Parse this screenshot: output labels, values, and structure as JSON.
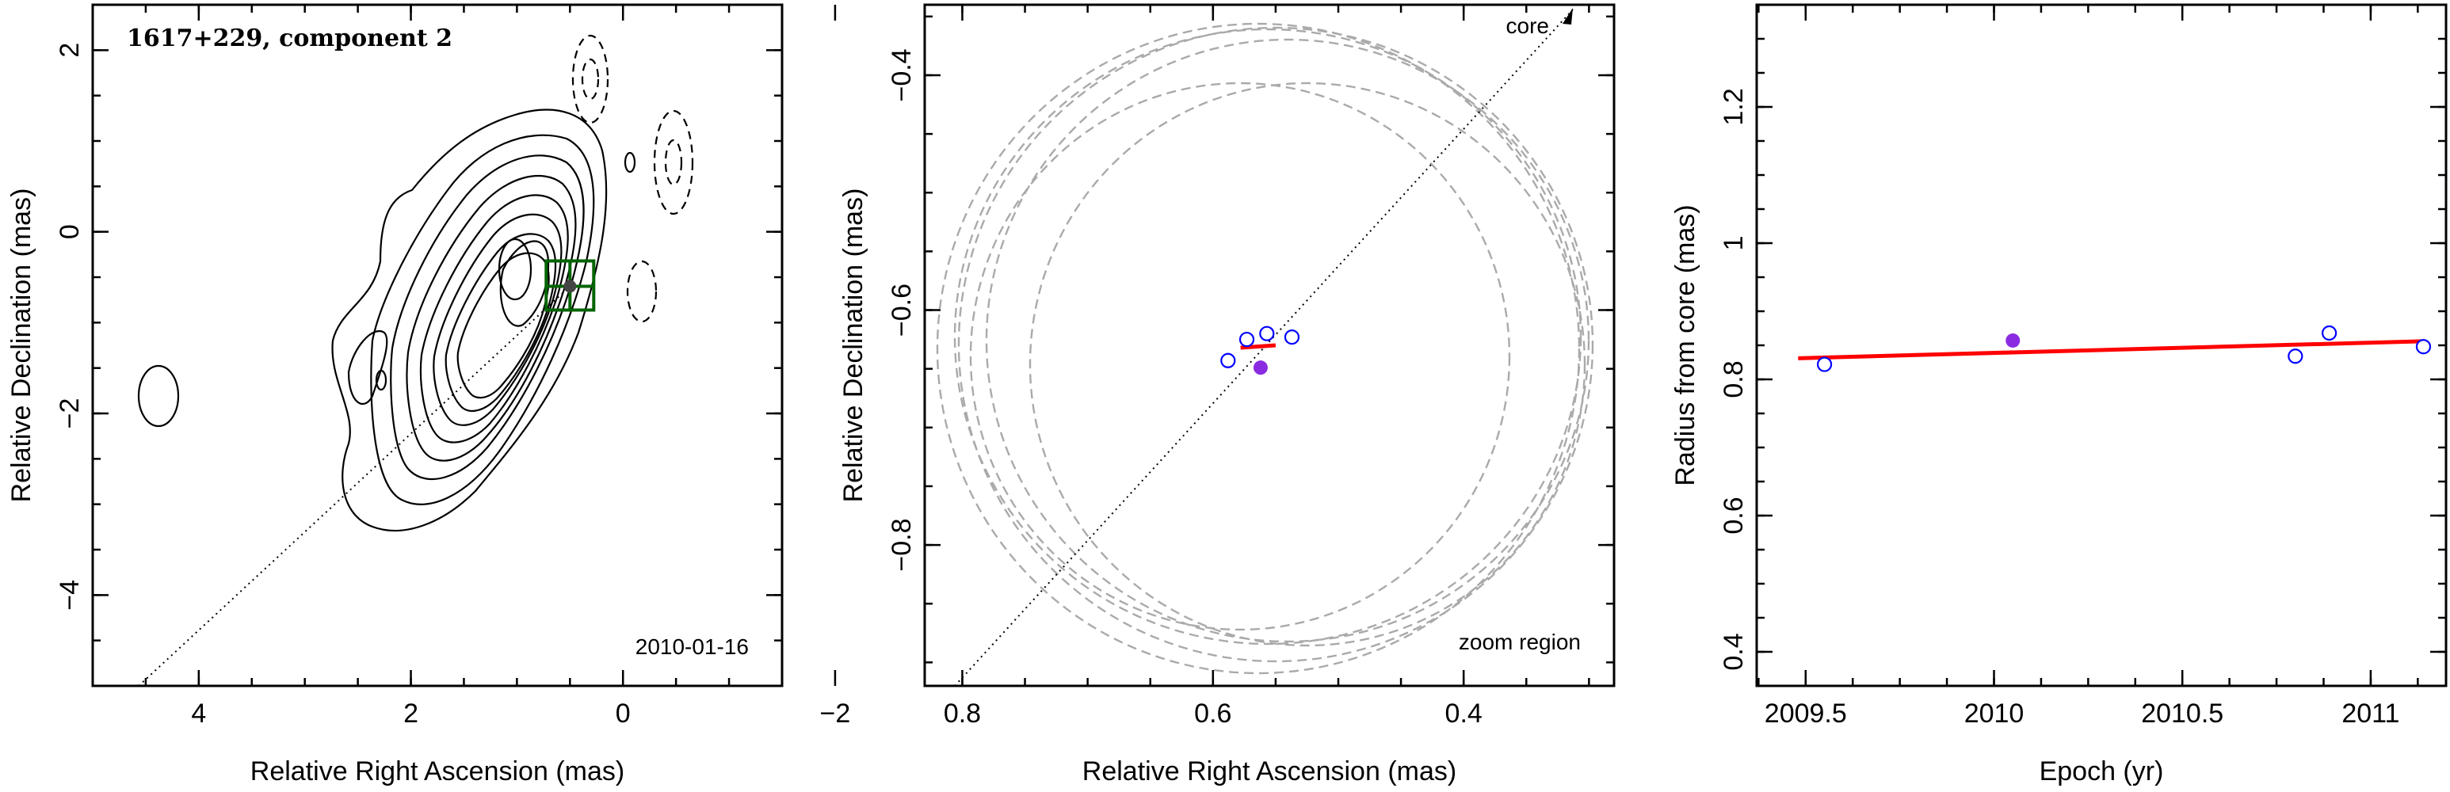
{
  "chart_data": [
    {
      "type": "contour",
      "title": "1617+229, component 2",
      "annotation": "2010-01-16",
      "xlabel": "Relative Right Ascension (mas)",
      "ylabel": "Relative Declination (mas)",
      "xlim": [
        5,
        -1.5
      ],
      "ylim": [
        -5,
        2.5
      ],
      "xticks": [
        4,
        2,
        0,
        -2
      ],
      "xtick_labels": [
        "4",
        "2",
        "0",
        "−2"
      ],
      "yticks": [
        2,
        0,
        -2,
        -4
      ],
      "ytick_labels": [
        "2",
        "0",
        "−2",
        "−4"
      ],
      "component": {
        "x": 0.5,
        "y": -0.6,
        "color": "#444444",
        "box_color": "#006400"
      }
    },
    {
      "type": "scatter",
      "xlabel": "Relative Right Ascension (mas)",
      "ylabel": "Relative Declination (mas)",
      "xlim": [
        0.83,
        0.28
      ],
      "ylim": [
        -0.92,
        -0.34
      ],
      "xticks": [
        0.8,
        0.6,
        0.4
      ],
      "xtick_labels": [
        "0.8",
        "0.6",
        "0.4"
      ],
      "yticks": [
        -0.4,
        -0.6,
        -0.8
      ],
      "ytick_labels": [
        "−0.4",
        "−0.6",
        "−0.8"
      ],
      "annotations": [
        "core",
        "zoom region"
      ],
      "open_points": [
        {
          "x": 0.588,
          "y": -0.643
        },
        {
          "x": 0.573,
          "y": -0.625
        },
        {
          "x": 0.557,
          "y": -0.62
        },
        {
          "x": 0.537,
          "y": -0.623
        }
      ],
      "filled_point": {
        "x": 0.562,
        "y": -0.649
      },
      "point_colors": {
        "open": "#0000ff",
        "filled": "#8a2be2",
        "fit": "#ff0000"
      },
      "fit_segment": [
        [
          0.578,
          -0.632
        ],
        [
          0.55,
          -0.63
        ]
      ]
    },
    {
      "type": "scatter",
      "xlabel": "Epoch (yr)",
      "ylabel": "Radius from core (mas)",
      "xlim": [
        2009.37,
        2011.2
      ],
      "ylim": [
        0.35,
        1.35
      ],
      "xticks": [
        2009.5,
        2010,
        2010.5,
        2011
      ],
      "xtick_labels": [
        "2009.5",
        "2010",
        "2010.5",
        "2011"
      ],
      "yticks": [
        0.4,
        0.6,
        0.8,
        1,
        1.2
      ],
      "ytick_labels": [
        "0.4",
        "0.6",
        "0.8",
        "1",
        "1.2"
      ],
      "open_points": [
        {
          "x": 2009.55,
          "y": 0.822
        },
        {
          "x": 2010.8,
          "y": 0.834
        },
        {
          "x": 2010.89,
          "y": 0.868
        },
        {
          "x": 2011.14,
          "y": 0.848
        }
      ],
      "filled_point": {
        "x": 2010.05,
        "y": 0.857
      },
      "point_colors": {
        "open": "#0000ff",
        "filled": "#8a2be2",
        "fit": "#ff0000"
      },
      "fit_line": [
        [
          2009.48,
          0.831
        ],
        [
          2011.14,
          0.856
        ]
      ]
    }
  ]
}
